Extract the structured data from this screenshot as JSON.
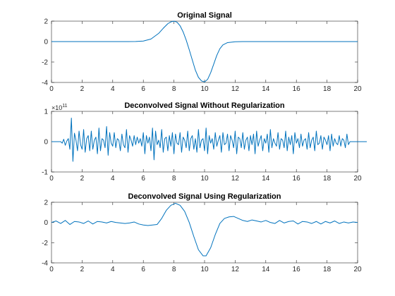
{
  "chart_data": [
    {
      "type": "line",
      "title": "Original Signal",
      "xlim": [
        0,
        20
      ],
      "ylim": [
        -4,
        2
      ],
      "xticks": [
        0,
        2,
        4,
        6,
        8,
        10,
        12,
        14,
        16,
        18,
        20
      ],
      "yticks": [
        -4,
        -2,
        0,
        2
      ],
      "color": "#0072bd",
      "x": [
        0,
        1,
        2,
        3,
        4,
        5,
        5.5,
        6,
        6.5,
        7,
        7.3,
        7.6,
        7.8,
        8,
        8.2,
        8.4,
        8.6,
        8.8,
        9,
        9.2,
        9.4,
        9.6,
        9.8,
        10,
        10.2,
        10.4,
        10.6,
        10.8,
        11,
        11.2,
        11.5,
        12,
        12.5,
        13,
        14,
        15,
        16,
        17,
        18,
        19,
        20
      ],
      "y": [
        0,
        0,
        0,
        0,
        0,
        0,
        0.01,
        0.05,
        0.25,
        0.8,
        1.3,
        1.75,
        1.93,
        2.0,
        1.9,
        1.55,
        0.95,
        0.15,
        -0.8,
        -1.8,
        -2.8,
        -3.5,
        -3.85,
        -3.95,
        -3.7,
        -3.05,
        -2.2,
        -1.35,
        -0.7,
        -0.32,
        -0.1,
        -0.02,
        0,
        0,
        0,
        0,
        0,
        0,
        0,
        0,
        0
      ]
    },
    {
      "type": "line",
      "title": "Deconvolved Signal Without Regularization",
      "xlim": [
        0,
        20
      ],
      "ylim": [
        -1,
        1
      ],
      "xticks": [
        0,
        2,
        4,
        6,
        8,
        10,
        12,
        14,
        16,
        18,
        20
      ],
      "yticks": [
        -1,
        0,
        1
      ],
      "exponent_base": "×10",
      "exponent": "11",
      "color": "#0072bd",
      "x_start": 0,
      "x_step": 0.1,
      "y": [
        0,
        0,
        0,
        0,
        0,
        0,
        0,
        -0.05,
        0.08,
        -0.12,
        0.02,
        0.1,
        -0.25,
        0.78,
        -0.65,
        0.28,
        0.05,
        -0.3,
        0.35,
        -0.1,
        -0.25,
        0.4,
        -0.35,
        0.1,
        0.2,
        -0.3,
        0.35,
        -0.25,
        0.05,
        0.15,
        -0.4,
        0.45,
        -0.3,
        0.1,
        0.05,
        -0.2,
        0.5,
        -0.45,
        0.3,
        -0.05,
        -0.15,
        0.3,
        -0.2,
        0.1,
        0.05,
        -0.3,
        0.25,
        -0.1,
        -0.2,
        0.4,
        -0.35,
        0.2,
        0.05,
        -0.15,
        0.2,
        -0.1,
        0.15,
        -0.05,
        0.1,
        -0.15,
        0.3,
        -0.4,
        0.2,
        -0.05,
        0.15,
        -0.3,
        0.45,
        -0.6,
        0.35,
        -0.1,
        0.05,
        -0.2,
        0.4,
        -0.35,
        0.1,
        0.15,
        -0.3,
        0.2,
        -0.15,
        0.3,
        -0.4,
        0.25,
        -0.05,
        -0.1,
        0.3,
        -0.35,
        0.15,
        0.05,
        -0.2,
        0.35,
        -0.3,
        0.1,
        0.2,
        -0.25,
        0.1,
        -0.35,
        0.4,
        -0.2,
        0.05,
        0.1,
        -0.3,
        0.45,
        -0.4,
        0.2,
        -0.05,
        0.1,
        -0.25,
        0.3,
        -0.15,
        0.05,
        0.2,
        -0.35,
        0.3,
        -0.1,
        -0.05,
        0.25,
        -0.3,
        0.2,
        0.05,
        -0.2,
        0.35,
        -0.4,
        0.15,
        0.1,
        -0.2,
        0.3,
        -0.25,
        0.05,
        0.15,
        -0.3,
        0.2,
        -0.1,
        0.25,
        -0.4,
        0.35,
        -0.15,
        0.05,
        0.2,
        -0.3,
        0.1,
        -0.05,
        0.25,
        -0.35,
        0.4,
        -0.2,
        0.1,
        -0.05,
        -0.15,
        0.3,
        -0.25,
        0.1,
        0.05,
        -0.2,
        0.35,
        -0.3,
        0.15,
        -0.1,
        0.2,
        -0.4,
        0.3,
        -0.05,
        0.1,
        -0.2,
        0.25,
        -0.15,
        0.05,
        0.1,
        -0.25,
        0.3,
        -0.2,
        0.05,
        0.15,
        -0.3,
        0.35,
        -0.1,
        -0.05,
        0.2,
        -0.25,
        0.15,
        0.05,
        -0.1,
        0.2,
        -0.3,
        0.25,
        -0.15,
        0.1,
        -0.05,
        -0.1,
        0.2,
        -0.15,
        0.1,
        0.05,
        -0.2,
        0.25,
        -0.1,
        0,
        0,
        0,
        0,
        0,
        0,
        0,
        0,
        0,
        0,
        0,
        0
      ]
    },
    {
      "type": "line",
      "title": "Deconvolved Signal Using Regularization",
      "xlim": [
        0,
        20
      ],
      "ylim": [
        -4,
        2
      ],
      "xticks": [
        0,
        2,
        4,
        6,
        8,
        10,
        12,
        14,
        16,
        18,
        20
      ],
      "yticks": [
        -4,
        -2,
        0,
        2
      ],
      "color": "#0072bd",
      "x": [
        0,
        0.3,
        0.6,
        0.9,
        1.2,
        1.5,
        1.8,
        2.1,
        2.4,
        2.7,
        3.0,
        3.3,
        3.6,
        3.9,
        4.2,
        4.5,
        4.8,
        5.1,
        5.4,
        5.7,
        6.0,
        6.3,
        6.6,
        6.9,
        7.2,
        7.5,
        7.8,
        8.1,
        8.4,
        8.7,
        9.0,
        9.3,
        9.6,
        9.9,
        10.1,
        10.4,
        10.7,
        11.0,
        11.3,
        11.6,
        11.9,
        12.2,
        12.5,
        12.8,
        13.1,
        13.4,
        13.7,
        14.0,
        14.3,
        14.6,
        14.9,
        15.2,
        15.5,
        15.8,
        16.1,
        16.4,
        16.7,
        17.0,
        17.3,
        17.6,
        17.9,
        18.2,
        18.5,
        18.8,
        19.1,
        19.4,
        19.7,
        20
      ],
      "y": [
        0.0,
        0.15,
        -0.1,
        0.2,
        -0.2,
        0.1,
        0.05,
        -0.1,
        0.15,
        -0.15,
        0.1,
        0.05,
        -0.05,
        0.1,
        0.0,
        -0.05,
        -0.1,
        -0.05,
        0.05,
        -0.15,
        -0.25,
        -0.3,
        -0.25,
        -0.2,
        0.4,
        1.2,
        1.7,
        1.9,
        1.7,
        1.1,
        0.0,
        -1.4,
        -2.7,
        -3.3,
        -3.3,
        -2.5,
        -1.2,
        -0.1,
        0.4,
        0.55,
        0.6,
        0.4,
        0.2,
        0.1,
        0.25,
        0.15,
        0.05,
        0.2,
        0.0,
        -0.1,
        0.2,
        -0.05,
        0.1,
        0.15,
        -0.15,
        0.1,
        0.05,
        -0.1,
        0.1,
        -0.15,
        0.1,
        -0.05,
        0.15,
        -0.1,
        0.05,
        -0.05,
        0.05,
        0.0
      ]
    }
  ]
}
